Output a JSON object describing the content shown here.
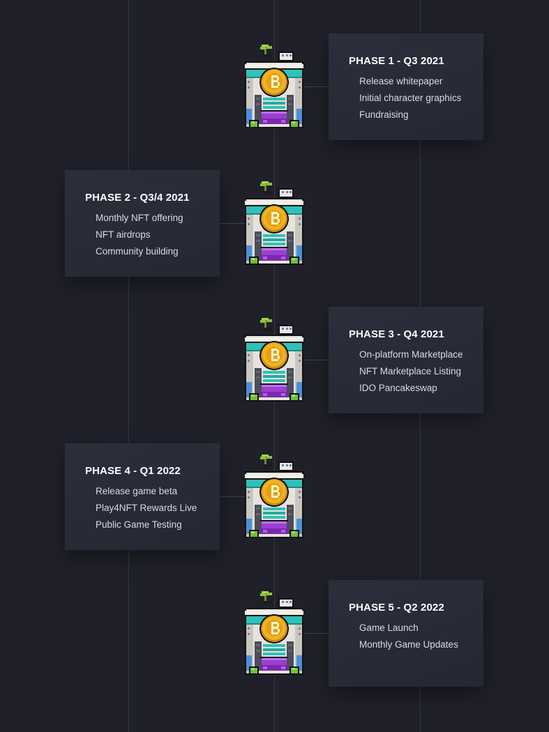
{
  "roadmap": {
    "phases": [
      {
        "title": "PHASE 1 - Q3 2021",
        "items": [
          "Release whitepaper",
          "Initial character graphics",
          "Fundraising"
        ],
        "icon": "bitcoin-building-icon"
      },
      {
        "title": "PHASE 2 - Q3/4 2021",
        "items": [
          "Monthly NFT offering",
          "NFT airdrops",
          "Community building"
        ],
        "icon": "bitcoin-building-icon"
      },
      {
        "title": "PHASE 3 - Q4 2021",
        "items": [
          "On-platform Marketplace",
          "NFT Marketplace Listing",
          "IDO Pancakeswap"
        ],
        "icon": "bitcoin-building-icon"
      },
      {
        "title": "PHASE 4 - Q1 2022",
        "items": [
          "Release game beta",
          "Play4NFT Rewards Live",
          "Public Game Testing"
        ],
        "icon": "bitcoin-building-icon"
      },
      {
        "title": "PHASE 5 - Q2 2022",
        "items": [
          "Game Launch",
          "Monthly Game Updates"
        ],
        "icon": "bitcoin-building-icon"
      }
    ]
  },
  "colors": {
    "background": "#1f2029",
    "card": "#2a2c38",
    "title_text": "#ffffff",
    "item_text": "#d9dae3",
    "coin": "#f2b320",
    "awning": "#9b3fd0",
    "teal": "#2fc2b8"
  }
}
